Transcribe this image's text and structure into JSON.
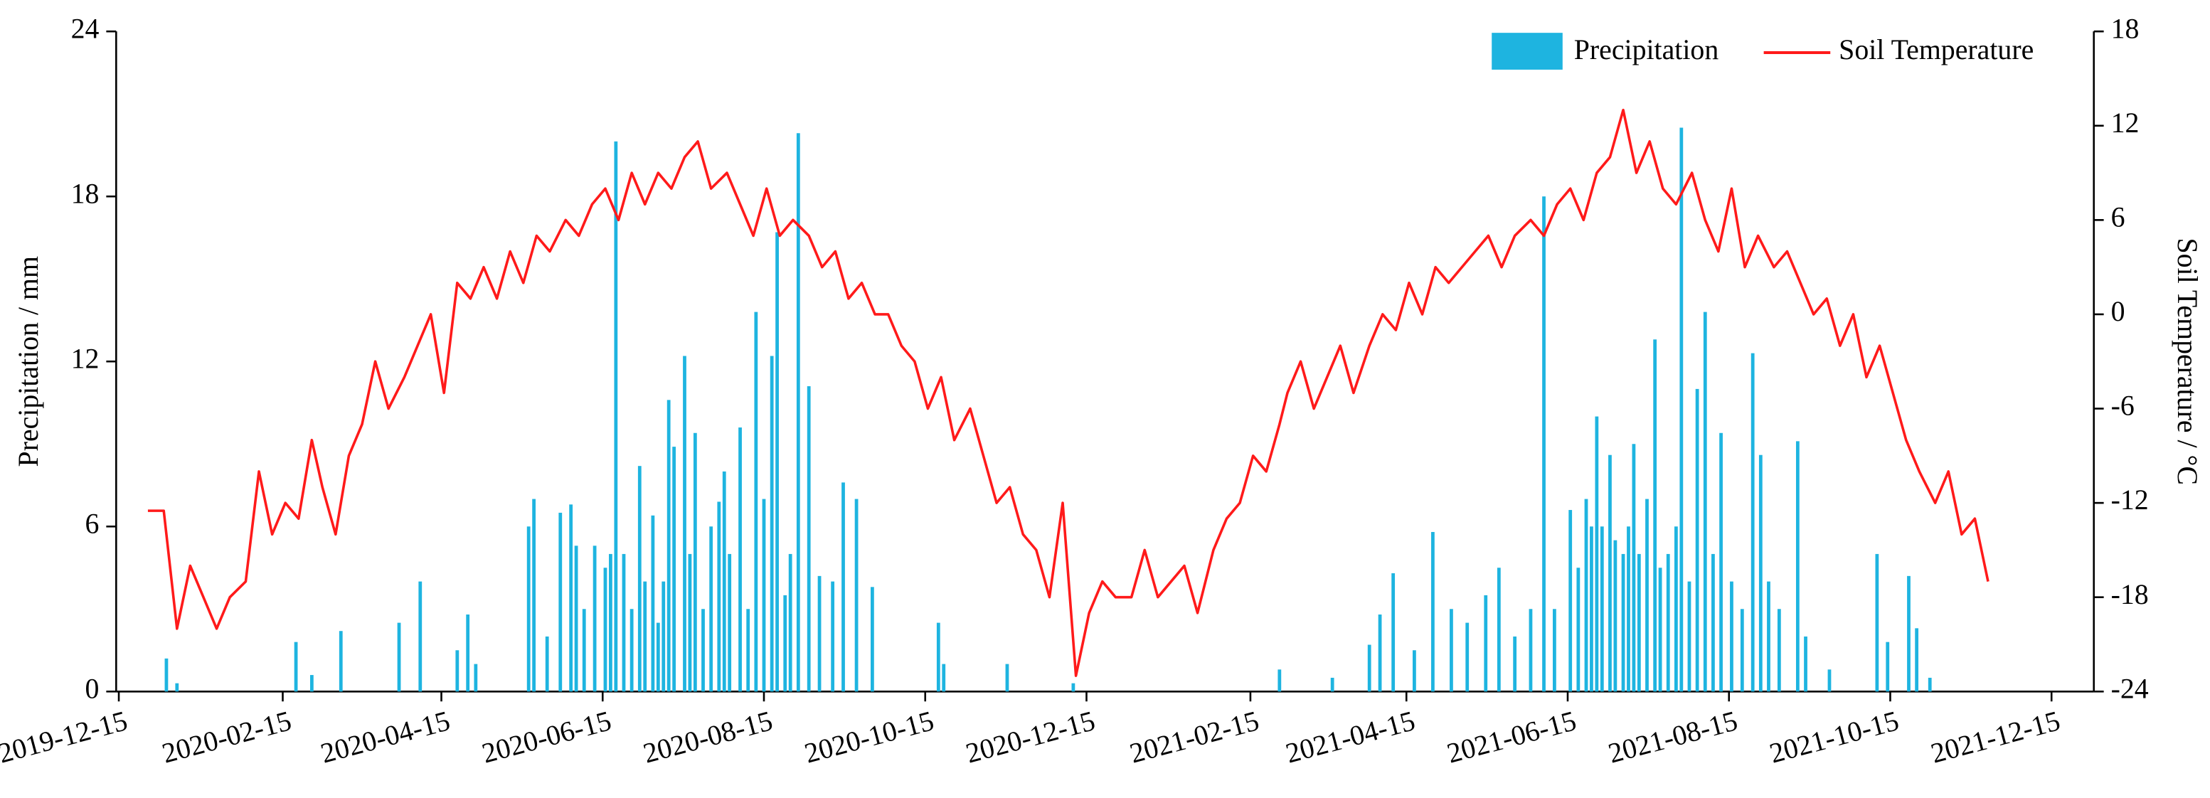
{
  "chart_data": {
    "type": "bar-line",
    "ylabel": "Precipitation / mm",
    "y2label": "Soil Temperature / °C",
    "xlim": [
      "2019-12-14",
      "2021-12-31"
    ],
    "xticks": [
      "2019-12-15",
      "2020-02-15",
      "2020-04-15",
      "2020-06-15",
      "2020-08-15",
      "2020-10-15",
      "2020-12-15",
      "2021-02-15",
      "2021-04-15",
      "2021-06-15",
      "2021-08-15",
      "2021-10-15",
      "2021-12-15"
    ],
    "ylim": [
      0,
      24
    ],
    "yticks": [
      0,
      6,
      12,
      18,
      24
    ],
    "y2lim": [
      -24,
      18
    ],
    "y2ticks": [
      -24,
      -18,
      -12,
      -6,
      0,
      6,
      12,
      18
    ],
    "series": [
      {
        "name": "Precipitation",
        "type": "bar",
        "color": "#1eb4e0",
        "x": [
          "2020-01-02",
          "2020-01-06",
          "2020-02-20",
          "2020-02-26",
          "2020-03-08",
          "2020-03-30",
          "2020-04-07",
          "2020-04-21",
          "2020-04-25",
          "2020-04-28",
          "2020-05-18",
          "2020-05-20",
          "2020-05-25",
          "2020-05-30",
          "2020-06-03",
          "2020-06-05",
          "2020-06-08",
          "2020-06-12",
          "2020-06-16",
          "2020-06-18",
          "2020-06-20",
          "2020-06-23",
          "2020-06-26",
          "2020-06-29",
          "2020-07-01",
          "2020-07-04",
          "2020-07-06",
          "2020-07-08",
          "2020-07-10",
          "2020-07-12",
          "2020-07-16",
          "2020-07-18",
          "2020-07-20",
          "2020-07-23",
          "2020-07-26",
          "2020-07-29",
          "2020-07-31",
          "2020-08-02",
          "2020-08-06",
          "2020-08-09",
          "2020-08-12",
          "2020-08-15",
          "2020-08-18",
          "2020-08-20",
          "2020-08-23",
          "2020-08-25",
          "2020-08-28",
          "2020-09-01",
          "2020-09-05",
          "2020-09-10",
          "2020-09-14",
          "2020-09-19",
          "2020-09-25",
          "2020-10-20",
          "2020-10-22",
          "2020-11-15",
          "2020-12-10",
          "2021-02-26",
          "2021-03-18",
          "2021-04-01",
          "2021-04-05",
          "2021-04-10",
          "2021-04-18",
          "2021-04-25",
          "2021-05-02",
          "2021-05-08",
          "2021-05-15",
          "2021-05-20",
          "2021-05-26",
          "2021-06-01",
          "2021-06-06",
          "2021-06-10",
          "2021-06-16",
          "2021-06-19",
          "2021-06-22",
          "2021-06-24",
          "2021-06-26",
          "2021-06-28",
          "2021-07-01",
          "2021-07-03",
          "2021-07-06",
          "2021-07-08",
          "2021-07-10",
          "2021-07-12",
          "2021-07-15",
          "2021-07-18",
          "2021-07-20",
          "2021-07-23",
          "2021-07-26",
          "2021-07-28",
          "2021-07-31",
          "2021-08-03",
          "2021-08-06",
          "2021-08-09",
          "2021-08-12",
          "2021-08-16",
          "2021-08-20",
          "2021-08-24",
          "2021-08-27",
          "2021-08-30",
          "2021-09-03",
          "2021-09-10",
          "2021-09-13",
          "2021-09-22",
          "2021-10-10",
          "2021-10-14",
          "2021-10-22",
          "2021-10-25",
          "2021-10-30"
        ],
        "values": [
          1.2,
          0.3,
          1.8,
          0.6,
          2.2,
          2.5,
          4.0,
          1.5,
          2.8,
          1.0,
          6.0,
          7.0,
          2.0,
          6.5,
          6.8,
          5.3,
          3.0,
          5.3,
          4.5,
          5.0,
          20.0,
          5.0,
          3.0,
          8.2,
          4.0,
          6.4,
          2.5,
          4.0,
          10.6,
          8.9,
          12.2,
          5.0,
          9.4,
          3.0,
          6.0,
          6.9,
          8.0,
          5.0,
          9.6,
          3.0,
          13.8,
          7.0,
          12.2,
          16.7,
          3.5,
          5.0,
          20.3,
          11.1,
          4.2,
          4.0,
          7.6,
          7.0,
          3.8,
          2.5,
          1.0,
          1.0,
          0.3,
          0.8,
          0.5,
          1.7,
          2.8,
          4.3,
          1.5,
          5.8,
          3.0,
          2.5,
          3.5,
          4.5,
          2.0,
          3.0,
          18.0,
          3.0,
          6.6,
          4.5,
          7.0,
          6.0,
          10.0,
          6.0,
          8.6,
          5.5,
          5.0,
          6.0,
          9.0,
          5.0,
          7.0,
          12.8,
          4.5,
          5.0,
          6.0,
          20.5,
          4.0,
          11.0,
          13.8,
          5.0,
          9.4,
          4.0,
          3.0,
          12.3,
          8.6,
          4.0,
          3.0,
          9.1,
          2.0,
          0.8,
          5.0,
          1.8,
          4.2,
          2.3,
          0.5
        ]
      },
      {
        "name": "Soil Temperature",
        "type": "line",
        "axis": "y2",
        "color": "#ff1a1a",
        "x": [
          "2019-12-26",
          "2020-01-01",
          "2020-01-06",
          "2020-01-11",
          "2020-01-16",
          "2020-01-21",
          "2020-01-26",
          "2020-02-01",
          "2020-02-06",
          "2020-02-11",
          "2020-02-16",
          "2020-02-21",
          "2020-02-26",
          "2020-03-01",
          "2020-03-06",
          "2020-03-11",
          "2020-03-16",
          "2020-03-21",
          "2020-03-26",
          "2020-04-01",
          "2020-04-06",
          "2020-04-11",
          "2020-04-16",
          "2020-04-21",
          "2020-04-26",
          "2020-05-01",
          "2020-05-06",
          "2020-05-11",
          "2020-05-16",
          "2020-05-21",
          "2020-05-26",
          "2020-06-01",
          "2020-06-06",
          "2020-06-11",
          "2020-06-16",
          "2020-06-21",
          "2020-06-26",
          "2020-07-01",
          "2020-07-06",
          "2020-07-11",
          "2020-07-16",
          "2020-07-21",
          "2020-07-26",
          "2020-08-01",
          "2020-08-06",
          "2020-08-11",
          "2020-08-16",
          "2020-08-21",
          "2020-08-26",
          "2020-09-01",
          "2020-09-06",
          "2020-09-11",
          "2020-09-16",
          "2020-09-21",
          "2020-09-26",
          "2020-10-01",
          "2020-10-06",
          "2020-10-11",
          "2020-10-16",
          "2020-10-21",
          "2020-10-26",
          "2020-11-01",
          "2020-11-06",
          "2020-11-11",
          "2020-11-16",
          "2020-11-21",
          "2020-11-26",
          "2020-12-01",
          "2020-12-06",
          "2020-12-11",
          "2020-12-16",
          "2020-12-21",
          "2020-12-26",
          "2021-01-01",
          "2021-01-06",
          "2021-01-11",
          "2021-01-16",
          "2021-01-21",
          "2021-01-26",
          "2021-02-01",
          "2021-02-06",
          "2021-02-11",
          "2021-02-16",
          "2021-02-21",
          "2021-02-26",
          "2021-03-01",
          "2021-03-06",
          "2021-03-11",
          "2021-03-16",
          "2021-03-21",
          "2021-03-26",
          "2021-04-01",
          "2021-04-06",
          "2021-04-11",
          "2021-04-16",
          "2021-04-21",
          "2021-04-26",
          "2021-05-01",
          "2021-05-06",
          "2021-05-11",
          "2021-05-16",
          "2021-05-21",
          "2021-05-26",
          "2021-06-01",
          "2021-06-06",
          "2021-06-11",
          "2021-06-16",
          "2021-06-21",
          "2021-06-26",
          "2021-07-01",
          "2021-07-06",
          "2021-07-11",
          "2021-07-16",
          "2021-07-21",
          "2021-07-26",
          "2021-08-01",
          "2021-08-06",
          "2021-08-11",
          "2021-08-16",
          "2021-08-21",
          "2021-08-26",
          "2021-09-01",
          "2021-09-06",
          "2021-09-11",
          "2021-09-16",
          "2021-09-21",
          "2021-09-26",
          "2021-10-01",
          "2021-10-06",
          "2021-10-11",
          "2021-10-16",
          "2021-10-21",
          "2021-10-26",
          "2021-11-01",
          "2021-11-06",
          "2021-11-11",
          "2021-11-16",
          "2021-11-21"
        ],
        "values": [
          -12.5,
          -12.5,
          -20,
          -16,
          -18,
          -20,
          -18,
          -17,
          -10,
          -14,
          -12,
          -13,
          -8,
          -11,
          -14,
          -9,
          -7,
          -3,
          -6,
          -4,
          -2,
          0,
          -5,
          2,
          1,
          3,
          1,
          4,
          2,
          5,
          4,
          6,
          5,
          7,
          8,
          6,
          9,
          7,
          9,
          8,
          10,
          11,
          8,
          9,
          7,
          5,
          8,
          5,
          6,
          5,
          3,
          4,
          1,
          2,
          0,
          0,
          -2,
          -3,
          -6,
          -4,
          -8,
          -6,
          -9,
          -12,
          -11,
          -14,
          -15,
          -18,
          -12,
          -23,
          -19,
          -17,
          -18,
          -18,
          -15,
          -18,
          -17,
          -16,
          -19,
          -15,
          -13,
          -12,
          -9,
          -10,
          -7,
          -5,
          -3,
          -6,
          -4,
          -2,
          -5,
          -2,
          0,
          -1,
          2,
          0,
          3,
          2,
          3,
          4,
          5,
          3,
          5,
          6,
          5,
          7,
          8,
          6,
          9,
          10,
          13,
          9,
          11,
          8,
          7,
          9,
          6,
          4,
          8,
          3,
          5,
          3,
          4,
          2,
          0,
          1,
          -2,
          0,
          -4,
          -2,
          -5,
          -8,
          -10,
          -12,
          -10,
          -14,
          -13,
          -17
        ]
      }
    ]
  }
}
